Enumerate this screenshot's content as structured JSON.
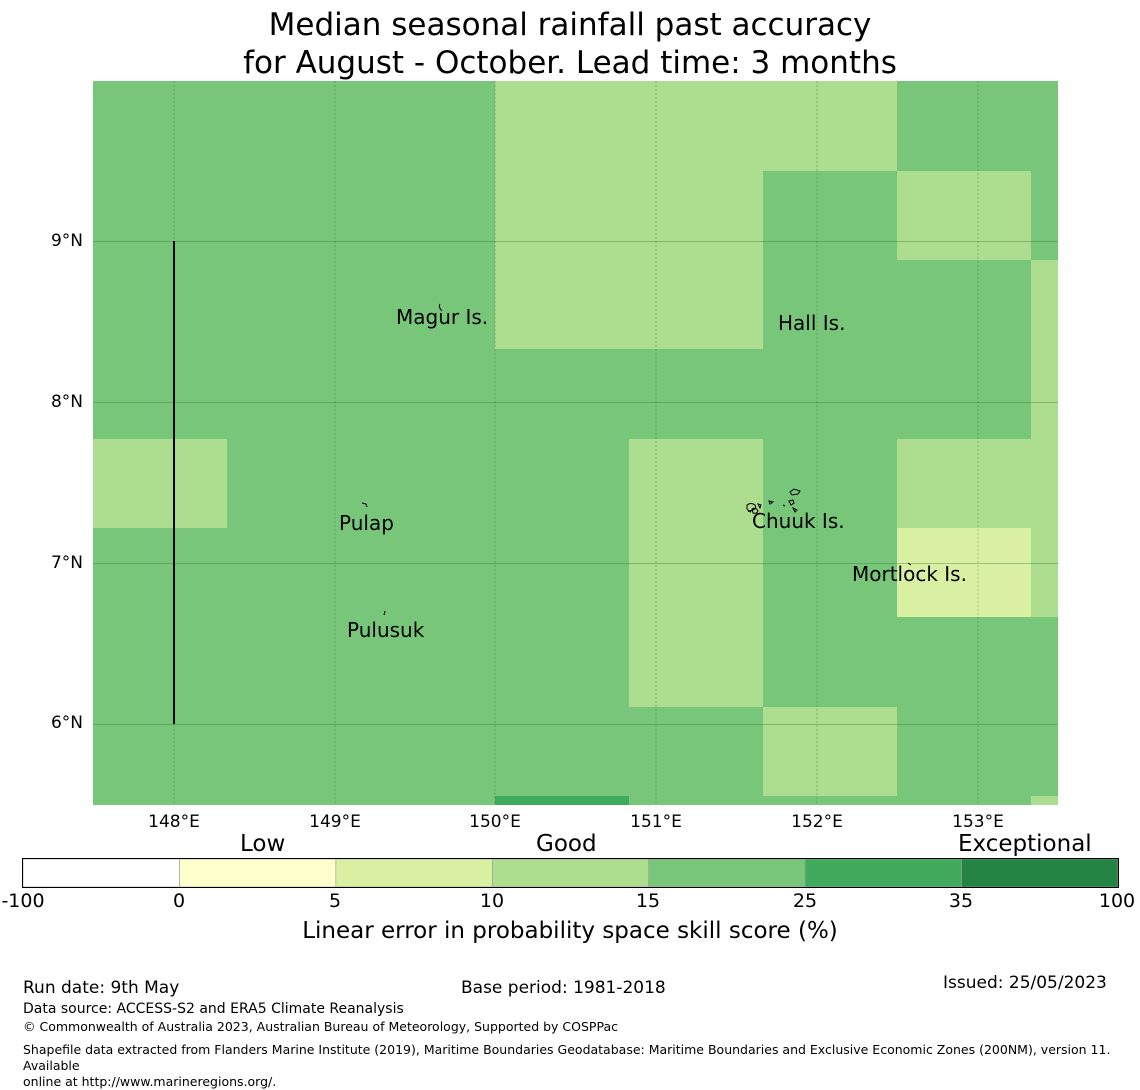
{
  "title": {
    "line1": "Median seasonal rainfall past accuracy",
    "line2": "for August - October. Lead time: 3 months"
  },
  "map": {
    "extent": {
      "lon": [
        147.5,
        153.5
      ],
      "lat": [
        5.5,
        10.0
      ]
    },
    "lat_ticks": [
      "9°N",
      "8°N",
      "7°N",
      "6°N"
    ],
    "lon_ticks": [
      "148°E",
      "149°E",
      "150°E",
      "151°E",
      "152°E",
      "153°E"
    ],
    "places": [
      {
        "name": "Magur Is."
      },
      {
        "name": "Hall Is."
      },
      {
        "name": "Pulap"
      },
      {
        "name": "Chuuk Is."
      },
      {
        "name": "Mortlock Is."
      },
      {
        "name": "Pulusuk"
      }
    ]
  },
  "colorbar": {
    "category_labels": [
      "Low",
      "Good",
      "Exceptional"
    ],
    "tick_labels": [
      "-100",
      "0",
      "5",
      "10",
      "15",
      "25",
      "35",
      "100"
    ],
    "colors": [
      "#ffffff",
      "#ffffcc",
      "#d9f0a3",
      "#addd8e",
      "#78c679",
      "#41ab5d",
      "#238443"
    ],
    "title": "Linear error in probability space skill score (%)"
  },
  "footer": {
    "run_date": "Run date: 9th May",
    "base_period": "Base period: 1981-2018",
    "issued": "Issued: 25/05/2023",
    "data_source": "Data source: ACCESS-S2 and ERA5 Climate Reanalysis",
    "copyright": "© Commonwealth of Australia 2023, Australian Bureau of Meteorology, Supported by COSPPac",
    "shapefile_line1": "Shapefile data extracted from Flanders Marine Institute (2019), Maritime Boundaries Geodatabase: Maritime Boundaries and Exclusive Economic Zones (200NM), version 11. Available",
    "shapefile_line2": "online at http://www.marineregions.org/."
  }
}
